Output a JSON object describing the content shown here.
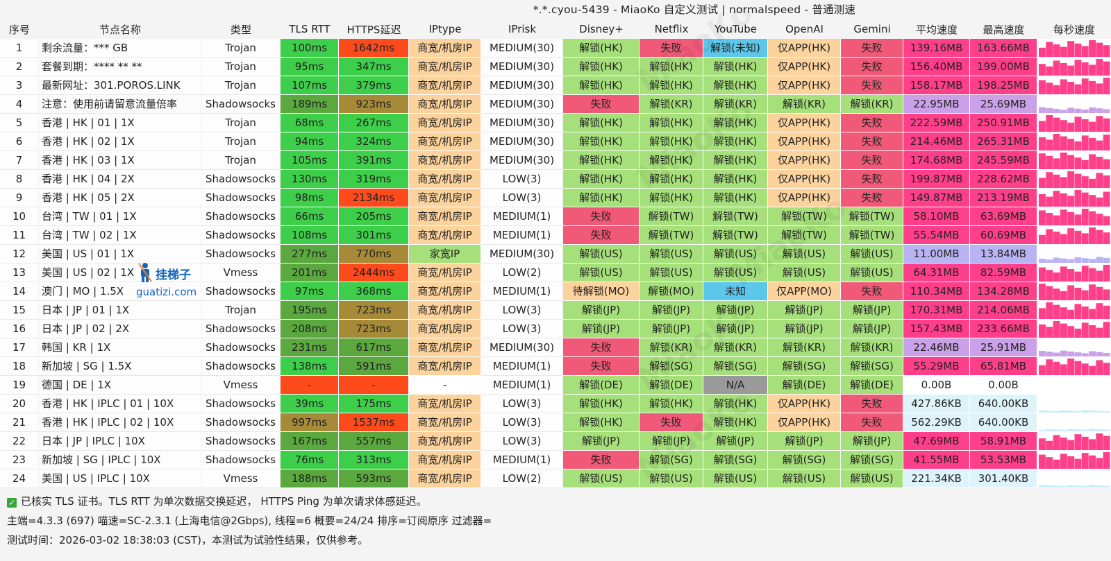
{
  "title": "*.*.cyou-5439 - MiaoKo 自定义测试 | normalspeed - 普通测速",
  "headers": [
    "序号",
    "节点名称",
    "类型",
    "TLS RTT",
    "HTTPS延迟",
    "IPtype",
    "IPrisk",
    "Disney+",
    "Netflix",
    "YouTube",
    "OpenAI",
    "Gemini",
    "平均速度",
    "最高速度",
    "每秒速度"
  ],
  "rows": [
    {
      "id": "1",
      "name": "剩余流量：*** GB",
      "type": "Trojan",
      "tls": "100ms",
      "https": "1642ms",
      "iptype": "商宽/机房IP",
      "iprisk": "MEDIUM(30)",
      "disney": "解锁(HK)",
      "netflix": "失败",
      "youtube": "解锁(未知)",
      "openai": "仅APP(HK)",
      "gemini": "失败",
      "avg": "139.16MB",
      "max": "163.66MB"
    },
    {
      "id": "2",
      "name": "套餐到期：**** ** **",
      "type": "Trojan",
      "tls": "95ms",
      "https": "347ms",
      "iptype": "商宽/机房IP",
      "iprisk": "MEDIUM(30)",
      "disney": "解锁(HK)",
      "netflix": "解锁(HK)",
      "youtube": "解锁(HK)",
      "openai": "仅APP(HK)",
      "gemini": "失败",
      "avg": "156.40MB",
      "max": "199.00MB"
    },
    {
      "id": "3",
      "name": "最新网址：301.POROS.LINK",
      "type": "Trojan",
      "tls": "107ms",
      "https": "379ms",
      "iptype": "商宽/机房IP",
      "iprisk": "MEDIUM(30)",
      "disney": "解锁(HK)",
      "netflix": "解锁(HK)",
      "youtube": "解锁(HK)",
      "openai": "仅APP(HK)",
      "gemini": "失败",
      "avg": "158.17MB",
      "max": "198.25MB"
    },
    {
      "id": "4",
      "name": "注意：使用前请留意流量倍率",
      "type": "Shadowsocks",
      "tls": "189ms",
      "https": "923ms",
      "iptype": "商宽/机房IP",
      "iprisk": "MEDIUM(30)",
      "disney": "失败",
      "netflix": "解锁(KR)",
      "youtube": "解锁(KR)",
      "openai": "解锁(KR)",
      "gemini": "解锁(KR)",
      "avg": "22.95MB",
      "max": "25.69MB"
    },
    {
      "id": "5",
      "name": "香港 | HK | 01 | 1X",
      "type": "Trojan",
      "tls": "68ms",
      "https": "267ms",
      "iptype": "商宽/机房IP",
      "iprisk": "MEDIUM(30)",
      "disney": "解锁(HK)",
      "netflix": "解锁(HK)",
      "youtube": "解锁(HK)",
      "openai": "仅APP(HK)",
      "gemini": "失败",
      "avg": "222.59MB",
      "max": "250.91MB"
    },
    {
      "id": "6",
      "name": "香港 | HK | 02 | 1X",
      "type": "Trojan",
      "tls": "94ms",
      "https": "324ms",
      "iptype": "商宽/机房IP",
      "iprisk": "MEDIUM(30)",
      "disney": "解锁(HK)",
      "netflix": "解锁(HK)",
      "youtube": "解锁(HK)",
      "openai": "仅APP(HK)",
      "gemini": "失败",
      "avg": "214.46MB",
      "max": "265.31MB"
    },
    {
      "id": "7",
      "name": "香港 | HK | 03 | 1X",
      "type": "Trojan",
      "tls": "105ms",
      "https": "391ms",
      "iptype": "商宽/机房IP",
      "iprisk": "MEDIUM(30)",
      "disney": "解锁(HK)",
      "netflix": "解锁(HK)",
      "youtube": "解锁(HK)",
      "openai": "仅APP(HK)",
      "gemini": "失败",
      "avg": "174.68MB",
      "max": "245.59MB"
    },
    {
      "id": "8",
      "name": "香港 | HK | 04 | 2X",
      "type": "Shadowsocks",
      "tls": "130ms",
      "https": "319ms",
      "iptype": "商宽/机房IP",
      "iprisk": "LOW(3)",
      "disney": "解锁(HK)",
      "netflix": "解锁(HK)",
      "youtube": "解锁(HK)",
      "openai": "仅APP(HK)",
      "gemini": "失败",
      "avg": "199.87MB",
      "max": "228.62MB"
    },
    {
      "id": "9",
      "name": "香港 | HK | 05 | 2X",
      "type": "Shadowsocks",
      "tls": "98ms",
      "https": "2134ms",
      "iptype": "商宽/机房IP",
      "iprisk": "LOW(3)",
      "disney": "解锁(HK)",
      "netflix": "解锁(HK)",
      "youtube": "解锁(HK)",
      "openai": "仅APP(HK)",
      "gemini": "失败",
      "avg": "149.87MB",
      "max": "213.19MB"
    },
    {
      "id": "10",
      "name": "台湾 | TW | 01 | 1X",
      "type": "Shadowsocks",
      "tls": "66ms",
      "https": "205ms",
      "iptype": "商宽/机房IP",
      "iprisk": "MEDIUM(1)",
      "disney": "失败",
      "netflix": "解锁(TW)",
      "youtube": "解锁(TW)",
      "openai": "解锁(TW)",
      "gemini": "解锁(TW)",
      "avg": "58.10MB",
      "max": "63.69MB"
    },
    {
      "id": "11",
      "name": "台湾 | TW | 02 | 1X",
      "type": "Shadowsocks",
      "tls": "108ms",
      "https": "301ms",
      "iptype": "商宽/机房IP",
      "iprisk": "MEDIUM(1)",
      "disney": "失败",
      "netflix": "解锁(TW)",
      "youtube": "解锁(TW)",
      "openai": "解锁(TW)",
      "gemini": "解锁(TW)",
      "avg": "55.54MB",
      "max": "60.69MB"
    },
    {
      "id": "12",
      "name": "美国 | US | 01 | 1X",
      "type": "Shadowsocks",
      "tls": "277ms",
      "https": "770ms",
      "iptype": "家宽IP",
      "iprisk": "MEDIUM(30)",
      "disney": "解锁(US)",
      "netflix": "解锁(US)",
      "youtube": "解锁(US)",
      "openai": "解锁(US)",
      "gemini": "解锁(US)",
      "avg": "11.00MB",
      "max": "13.84MB"
    },
    {
      "id": "13",
      "name": "美国 | US | 02 | 1X",
      "type": "Vmess",
      "tls": "201ms",
      "https": "2444ms",
      "iptype": "商宽/机房IP",
      "iprisk": "LOW(2)",
      "disney": "解锁(US)",
      "netflix": "解锁(US)",
      "youtube": "解锁(US)",
      "openai": "解锁(US)",
      "gemini": "解锁(US)",
      "avg": "64.31MB",
      "max": "82.59MB"
    },
    {
      "id": "14",
      "name": "澳门 | MO | 1.5X",
      "type": "Shadowsocks",
      "tls": "97ms",
      "https": "368ms",
      "iptype": "商宽/机房IP",
      "iprisk": "MEDIUM(1)",
      "disney": "待解锁(MO)",
      "netflix": "解锁(MO)",
      "youtube": "未知",
      "openai": "仅APP(MO)",
      "gemini": "失败",
      "avg": "110.34MB",
      "max": "134.28MB"
    },
    {
      "id": "15",
      "name": "日本 | JP | 01 | 1X",
      "type": "Trojan",
      "tls": "195ms",
      "https": "723ms",
      "iptype": "商宽/机房IP",
      "iprisk": "LOW(3)",
      "disney": "解锁(JP)",
      "netflix": "解锁(JP)",
      "youtube": "解锁(JP)",
      "openai": "解锁(JP)",
      "gemini": "解锁(JP)",
      "avg": "170.31MB",
      "max": "214.06MB"
    },
    {
      "id": "16",
      "name": "日本 | JP | 02 | 2X",
      "type": "Shadowsocks",
      "tls": "208ms",
      "https": "723ms",
      "iptype": "商宽/机房IP",
      "iprisk": "LOW(3)",
      "disney": "解锁(JP)",
      "netflix": "解锁(JP)",
      "youtube": "解锁(JP)",
      "openai": "解锁(JP)",
      "gemini": "解锁(JP)",
      "avg": "157.43MB",
      "max": "233.66MB"
    },
    {
      "id": "17",
      "name": "韩国 | KR | 1X",
      "type": "Shadowsocks",
      "tls": "231ms",
      "https": "617ms",
      "iptype": "商宽/机房IP",
      "iprisk": "MEDIUM(30)",
      "disney": "失败",
      "netflix": "解锁(KR)",
      "youtube": "解锁(KR)",
      "openai": "解锁(KR)",
      "gemini": "解锁(KR)",
      "avg": "22.46MB",
      "max": "25.91MB"
    },
    {
      "id": "18",
      "name": "新加坡 | SG | 1.5X",
      "type": "Shadowsocks",
      "tls": "138ms",
      "https": "591ms",
      "iptype": "商宽/机房IP",
      "iprisk": "MEDIUM(1)",
      "disney": "失败",
      "netflix": "解锁(SG)",
      "youtube": "解锁(SG)",
      "openai": "解锁(SG)",
      "gemini": "解锁(SG)",
      "avg": "55.29MB",
      "max": "65.81MB"
    },
    {
      "id": "19",
      "name": "德国 | DE | 1X",
      "type": "Vmess",
      "tls": "-",
      "https": "-",
      "iptype": "-",
      "iprisk": "MEDIUM(1)",
      "disney": "解锁(DE)",
      "netflix": "解锁(DE)",
      "youtube": "N/A",
      "openai": "解锁(DE)",
      "gemini": "解锁(DE)",
      "avg": "0.00B",
      "max": "0.00B"
    },
    {
      "id": "20",
      "name": "香港 | HK | IPLC | 01 | 10X",
      "type": "Shadowsocks",
      "tls": "39ms",
      "https": "175ms",
      "iptype": "商宽/机房IP",
      "iprisk": "LOW(3)",
      "disney": "解锁(HK)",
      "netflix": "解锁(HK)",
      "youtube": "解锁(HK)",
      "openai": "仅APP(HK)",
      "gemini": "失败",
      "avg": "427.86KB",
      "max": "640.00KB"
    },
    {
      "id": "21",
      "name": "香港 | HK | IPLC | 02 | 10X",
      "type": "Shadowsocks",
      "tls": "997ms",
      "https": "1537ms",
      "iptype": "商宽/机房IP",
      "iprisk": "LOW(3)",
      "disney": "解锁(HK)",
      "netflix": "失败",
      "youtube": "解锁(HK)",
      "openai": "仅APP(HK)",
      "gemini": "失败",
      "avg": "562.29KB",
      "max": "640.00KB"
    },
    {
      "id": "22",
      "name": "日本 | JP | IPLC | 10X",
      "type": "Shadowsocks",
      "tls": "167ms",
      "https": "557ms",
      "iptype": "商宽/机房IP",
      "iprisk": "LOW(3)",
      "disney": "解锁(JP)",
      "netflix": "解锁(JP)",
      "youtube": "解锁(JP)",
      "openai": "解锁(JP)",
      "gemini": "解锁(JP)",
      "avg": "47.69MB",
      "max": "58.91MB"
    },
    {
      "id": "23",
      "name": "新加坡 | SG | IPLC | 10X",
      "type": "Shadowsocks",
      "tls": "76ms",
      "https": "313ms",
      "iptype": "商宽/机房IP",
      "iprisk": "MEDIUM(1)",
      "disney": "失败",
      "netflix": "解锁(SG)",
      "youtube": "解锁(SG)",
      "openai": "解锁(SG)",
      "gemini": "解锁(SG)",
      "avg": "41.55MB",
      "max": "53.53MB"
    },
    {
      "id": "24",
      "name": "美国 | US | IPLC | 10X",
      "type": "Vmess",
      "tls": "188ms",
      "https": "593ms",
      "iptype": "商宽/机房IP",
      "iprisk": "LOW(2)",
      "disney": "解锁(US)",
      "netflix": "解锁(US)",
      "youtube": "解锁(US)",
      "openai": "解锁(US)",
      "gemini": "解锁(US)",
      "avg": "221.34KB",
      "max": "301.40KB"
    }
  ],
  "footer": {
    "line1": "已核实 TLS 证书。TLS RTT 为单次数据交换延迟， HTTPS Ping 为单次请求体感延迟。",
    "line2": "主端=4.3.3 (697) 喵速=SC-2.3.1 (上海电信@2Gbps), 线程=6 概要=24/24 排序=订阅原序 过滤器=",
    "line3": "测试时间：2026-03-02 18:38:03 (CST)，本测试为试验性结果，仅供参考。"
  },
  "watermark": {
    "logo_cn": "挂梯子",
    "logo_en": "guatizi.com",
    "mark": "MiaoKo"
  },
  "colors": {
    "green": "#3ecf4a",
    "green_dark": "#5aa83e",
    "olive": "#a68a38",
    "orange_red": "#ff4a1c",
    "peach": "#fcd39c",
    "unlock": "#a6e07a",
    "fail": "#f05a78",
    "blue": "#5bc7ea",
    "gray": "#9a9a9a",
    "pink": "#ff3f8a",
    "violet": "#caa0e8",
    "lightblue": "#dff4fa",
    "lavender": "#b8b4f4",
    "neutral": "#f0efef",
    "white": "#ffffff"
  }
}
